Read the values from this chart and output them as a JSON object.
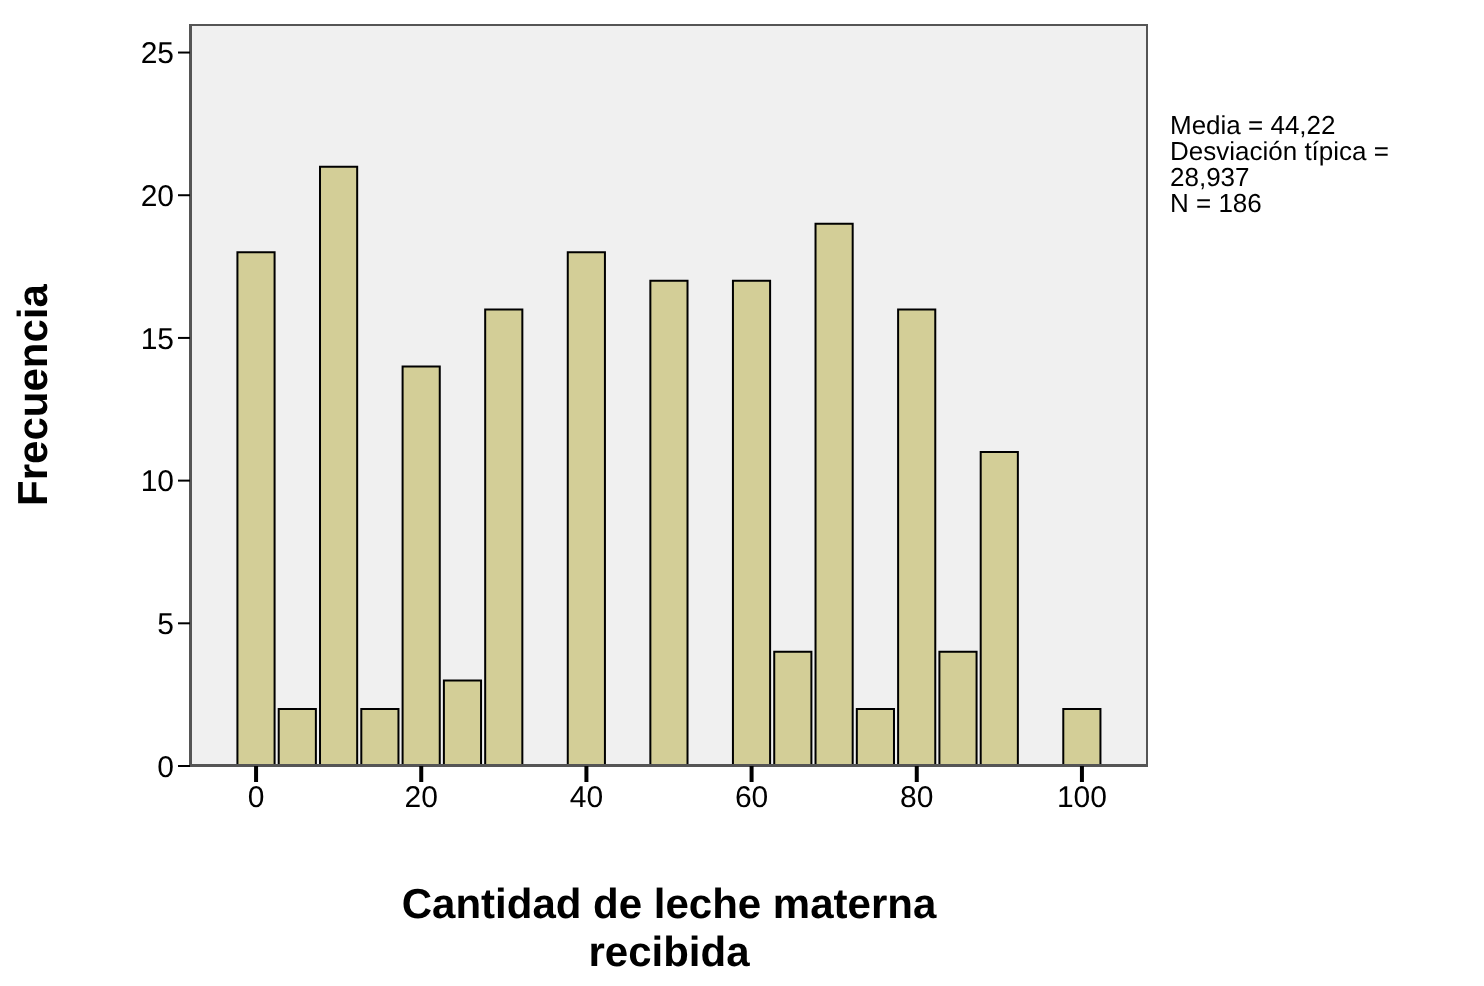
{
  "chart_data": {
    "type": "histogram",
    "xlabel": "Cantidad de leche materna recibida",
    "ylabel": "Frecuencia",
    "bins": [
      -2.5,
      2.5,
      7.5,
      12.5,
      17.5,
      22.5,
      27.5,
      32.5,
      37.5,
      42.5,
      47.5,
      52.5,
      57.5,
      62.5,
      67.5,
      72.5,
      77.5,
      82.5,
      87.5,
      92.5,
      97.5,
      102.5
    ],
    "values": [
      18,
      2,
      21,
      2,
      14,
      3,
      16,
      0,
      18,
      0,
      17,
      0,
      17,
      4,
      19,
      2,
      16,
      4,
      11,
      0,
      2
    ],
    "color": "#d3ce97",
    "xlim": [
      -8,
      108
    ],
    "xticks": [
      0,
      20,
      40,
      60,
      80,
      100
    ],
    "ylim": [
      0,
      26
    ],
    "yticks": [
      0,
      5,
      10,
      15,
      20,
      25
    ],
    "grid": false,
    "annotations": [
      "Media = 44,22",
      "Desviación típica = 28,937",
      "N = 186"
    ]
  }
}
